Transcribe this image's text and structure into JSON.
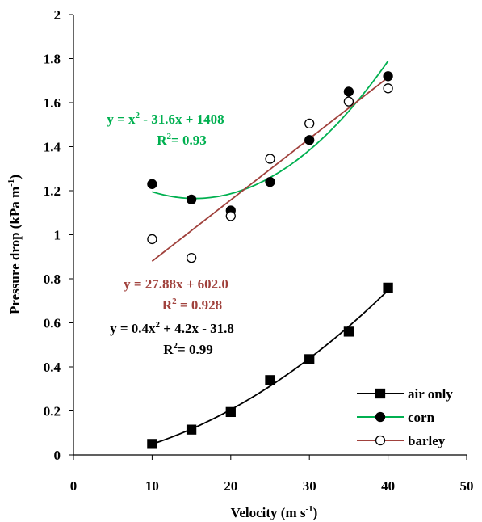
{
  "chart_data": {
    "type": "scatter",
    "x_label": [
      {
        "t": "Velocity (m s"
      },
      {
        "t": "-1",
        "sup": true
      },
      {
        "t": ")"
      }
    ],
    "y_label": [
      {
        "t": "Pressure drop (kPa m"
      },
      {
        "t": "-1",
        "sup": true
      },
      {
        "t": ")"
      }
    ],
    "xlim": [
      0,
      50
    ],
    "xticks": [
      0,
      10,
      20,
      30,
      40,
      50
    ],
    "ylim": [
      0,
      2
    ],
    "yticks": [
      0,
      0.2,
      0.4,
      0.6,
      0.8,
      1,
      1.2,
      1.4,
      1.6,
      1.8,
      2
    ],
    "grid": false,
    "legend": "lower right",
    "x": [
      10,
      15,
      20,
      25,
      30,
      35,
      40
    ],
    "series": [
      {
        "name": "air only",
        "marker": "square",
        "color": "#000000",
        "values": [
          0.05,
          0.115,
          0.195,
          0.34,
          0.435,
          0.56,
          0.76
        ],
        "trendline": {
          "type": "poly2",
          "color": "#000000"
        }
      },
      {
        "name": "corn",
        "marker": "circle",
        "color": "#000000",
        "values": [
          1.23,
          1.16,
          1.11,
          1.24,
          1.43,
          1.65,
          1.72
        ],
        "trendline": {
          "type": "poly2",
          "color": "#00b050"
        }
      },
      {
        "name": "barley",
        "marker": "circle",
        "color": "#ffffff",
        "values": [
          0.98,
          0.895,
          1.085,
          1.345,
          1.505,
          1.605,
          1.665
        ],
        "trendline": {
          "type": "linear",
          "color": "#a0413c"
        }
      }
    ],
    "annotations": [
      {
        "color": "#00b050",
        "lines": [
          [
            {
              "t": "y = x"
            },
            {
              "t": "2",
              "sup": true
            },
            {
              "t": " - 31.6x + 1408"
            }
          ],
          [
            {
              "t": "R"
            },
            {
              "t": "2",
              "sup": true
            },
            {
              "t": "= 0.93"
            }
          ]
        ]
      },
      {
        "color": "#a0413c",
        "lines": [
          [
            {
              "t": "y = 27.88x + 602.0"
            }
          ],
          [
            {
              "t": "R"
            },
            {
              "t": "2",
              "sup": true
            },
            {
              "t": " = 0.928"
            }
          ]
        ]
      },
      {
        "color": "#000000",
        "lines": [
          [
            {
              "t": "y = 0.4x"
            },
            {
              "t": "2",
              "sup": true
            },
            {
              "t": " + 4.2x - 31.8"
            }
          ],
          [
            {
              "t": "R"
            },
            {
              "t": "2",
              "sup": true
            },
            {
              "t": "= 0.99"
            }
          ]
        ]
      }
    ]
  }
}
